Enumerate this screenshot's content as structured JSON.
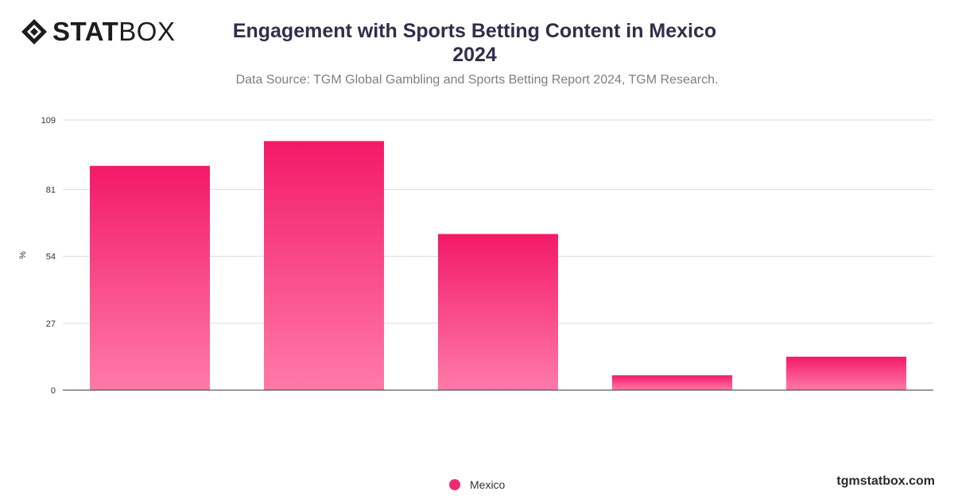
{
  "logo": {
    "bold": "STAT",
    "light": "BOX",
    "icon": "statbox-diamond-logo"
  },
  "header": {
    "title_line1": "Engagement with Sports Betting Content in Mexico",
    "title_line2": "2024",
    "subtitle": "Data Source: TGM Global Gambling and Sports Betting Report 2024, TGM Research."
  },
  "footer": {
    "brand": "tgmstatbox.com"
  },
  "colors": {
    "bar_top": "#f31a68",
    "bar_bottom": "#ff7aa9",
    "grid": "#dddddd",
    "axis": "#333333"
  },
  "chart_data": {
    "type": "bar",
    "categories": [
      "",
      "",
      "",
      "",
      ""
    ],
    "series": [
      {
        "name": "Mexico",
        "values": [
          90.5,
          100.5,
          63,
          6,
          13.5
        ]
      }
    ],
    "ylabel": "%",
    "yticks": [
      0,
      27,
      54,
      81,
      109
    ],
    "ylim": [
      0,
      109
    ],
    "grid": true,
    "legend": "bottom-center"
  }
}
